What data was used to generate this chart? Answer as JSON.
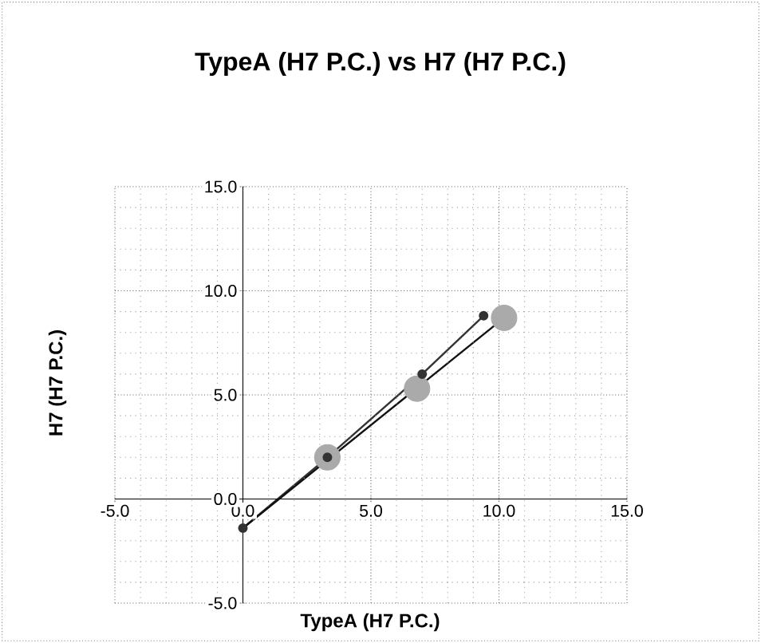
{
  "chart_data": {
    "type": "line",
    "title": "TypeA (H7 P.C.)  vs H7 (H7 P.C.)",
    "xlabel": "TypeA (H7 P.C.)",
    "ylabel": "H7 (H7 P.C.)",
    "xlim": [
      -5,
      15
    ],
    "ylim": [
      -5,
      15
    ],
    "xticks": [
      {
        "value": -5,
        "label": "-5.0"
      },
      {
        "value": 0,
        "label": "0.0"
      },
      {
        "value": 5,
        "label": "5.0"
      },
      {
        "value": 10,
        "label": "10.0"
      },
      {
        "value": 15,
        "label": "15.0"
      }
    ],
    "yticks": [
      {
        "value": -5,
        "label": "-5.0"
      },
      {
        "value": 0,
        "label": "0.0"
      },
      {
        "value": 5,
        "label": "5.0"
      },
      {
        "value": 10,
        "label": "10.0"
      },
      {
        "value": 15,
        "label": "15.0"
      }
    ],
    "grid": true,
    "series": [
      {
        "marker": "circle",
        "color": "#333333",
        "x": [
          0,
          3.3,
          7.0,
          9.4
        ],
        "values": [
          -1.4,
          2.0,
          6.0,
          8.8
        ]
      },
      {
        "type": "scatter",
        "marker": "circle",
        "color": "#aaaaaa",
        "x": [
          3.3,
          6.8,
          10.2
        ],
        "values": [
          2.0,
          5.3,
          8.7
        ]
      },
      {
        "marker": "none",
        "color": "#111111",
        "x": [
          0,
          10.2
        ],
        "values": [
          -1.4,
          8.7
        ]
      }
    ]
  }
}
